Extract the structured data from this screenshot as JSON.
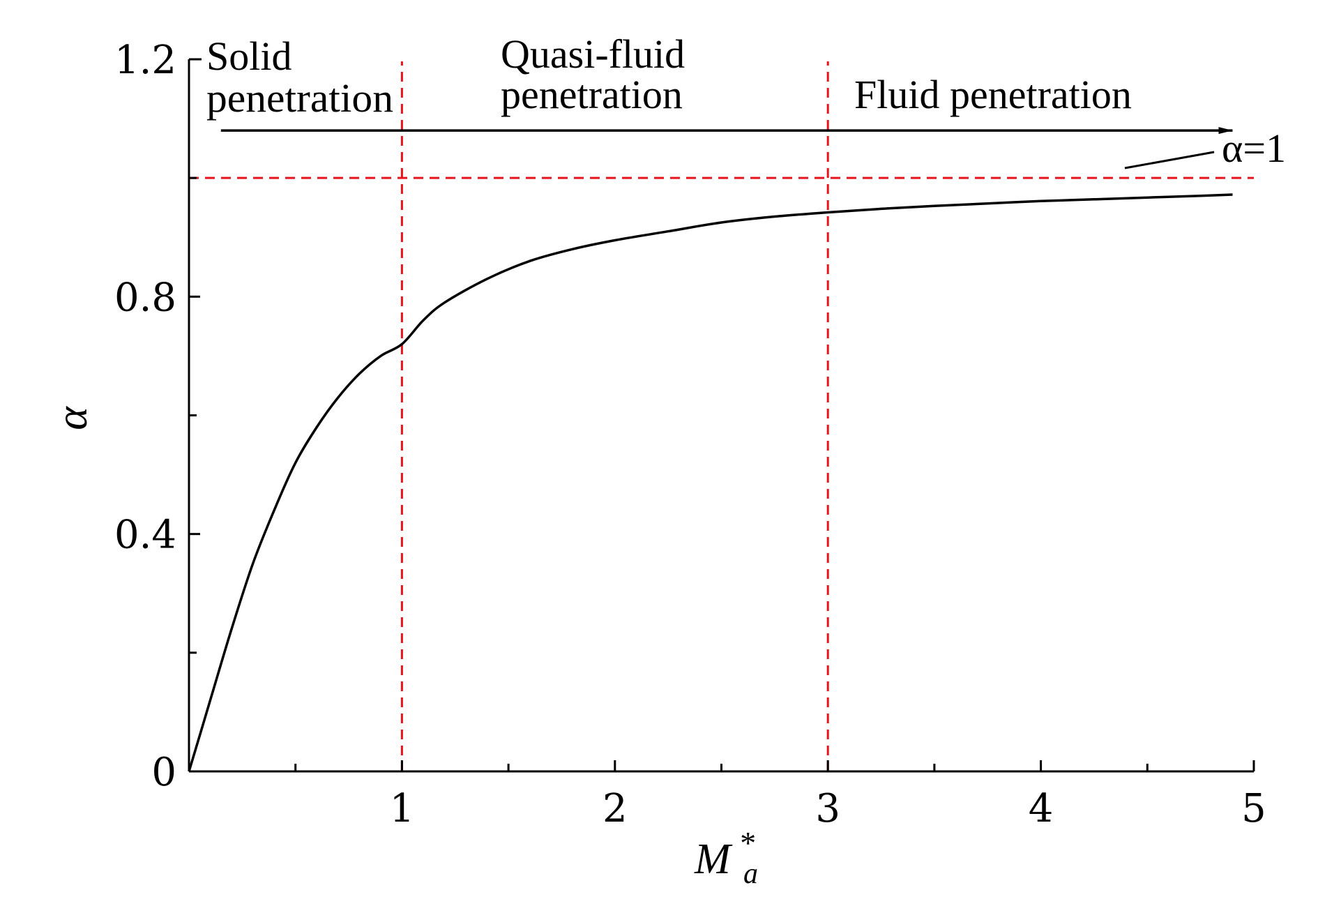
{
  "chart_data": {
    "type": "line",
    "xlabel": "M",
    "xlabel_superscript": "*",
    "xlabel_subscript": "a",
    "ylabel": "α",
    "xlim": [
      0,
      5
    ],
    "ylim": [
      0,
      1.2
    ],
    "x_ticks": [
      {
        "value": 1,
        "label": "1"
      },
      {
        "value": 2,
        "label": "2"
      },
      {
        "value": 3,
        "label": "3"
      },
      {
        "value": 4,
        "label": "4"
      },
      {
        "value": 5,
        "label": "5"
      }
    ],
    "x_minor_ticks": [
      0.5,
      1.5,
      2.5,
      3.5,
      4.5
    ],
    "y_ticks": [
      {
        "value": 0,
        "label": "0"
      },
      {
        "value": 0.4,
        "label": "0.4"
      },
      {
        "value": 0.8,
        "label": "0.8"
      },
      {
        "value": 1.2,
        "label": "1.2"
      }
    ],
    "y_minor_ticks": [
      0.2,
      0.6,
      1.0
    ],
    "series": [
      {
        "color": "#000000",
        "x": [
          0,
          0.1,
          0.2,
          0.3,
          0.4,
          0.5,
          0.6,
          0.7,
          0.8,
          0.9,
          1.0,
          1.1,
          1.2,
          1.4,
          1.6,
          1.8,
          2.0,
          2.25,
          2.5,
          2.75,
          3.0,
          3.25,
          3.5,
          3.75,
          4.0,
          4.25,
          4.5,
          4.75,
          4.9
        ],
        "y": [
          0,
          0.12,
          0.24,
          0.35,
          0.44,
          0.52,
          0.58,
          0.63,
          0.67,
          0.7,
          0.72,
          0.76,
          0.79,
          0.83,
          0.86,
          0.88,
          0.895,
          0.91,
          0.925,
          0.935,
          0.942,
          0.948,
          0.953,
          0.957,
          0.961,
          0.964,
          0.967,
          0.97,
          0.972
        ]
      }
    ],
    "reference_lines": [
      {
        "orientation": "horizontal",
        "value": 1.0,
        "color": "#e8141b",
        "style": "dashed",
        "label": "α=1"
      },
      {
        "orientation": "vertical",
        "value": 1,
        "color": "#e8141b",
        "style": "dashed"
      },
      {
        "orientation": "vertical",
        "value": 3,
        "color": "#e8141b",
        "style": "dashed"
      }
    ],
    "region_labels": [
      {
        "lines": [
          "Solid",
          "penetration"
        ]
      },
      {
        "lines": [
          "Quasi-fluid",
          "penetration"
        ]
      },
      {
        "lines": [
          "Fluid penetration"
        ]
      }
    ],
    "arrow": {
      "direction": "right",
      "from_x": 0.15,
      "to_x": 4.9,
      "y": 1.08
    },
    "grid": false
  }
}
